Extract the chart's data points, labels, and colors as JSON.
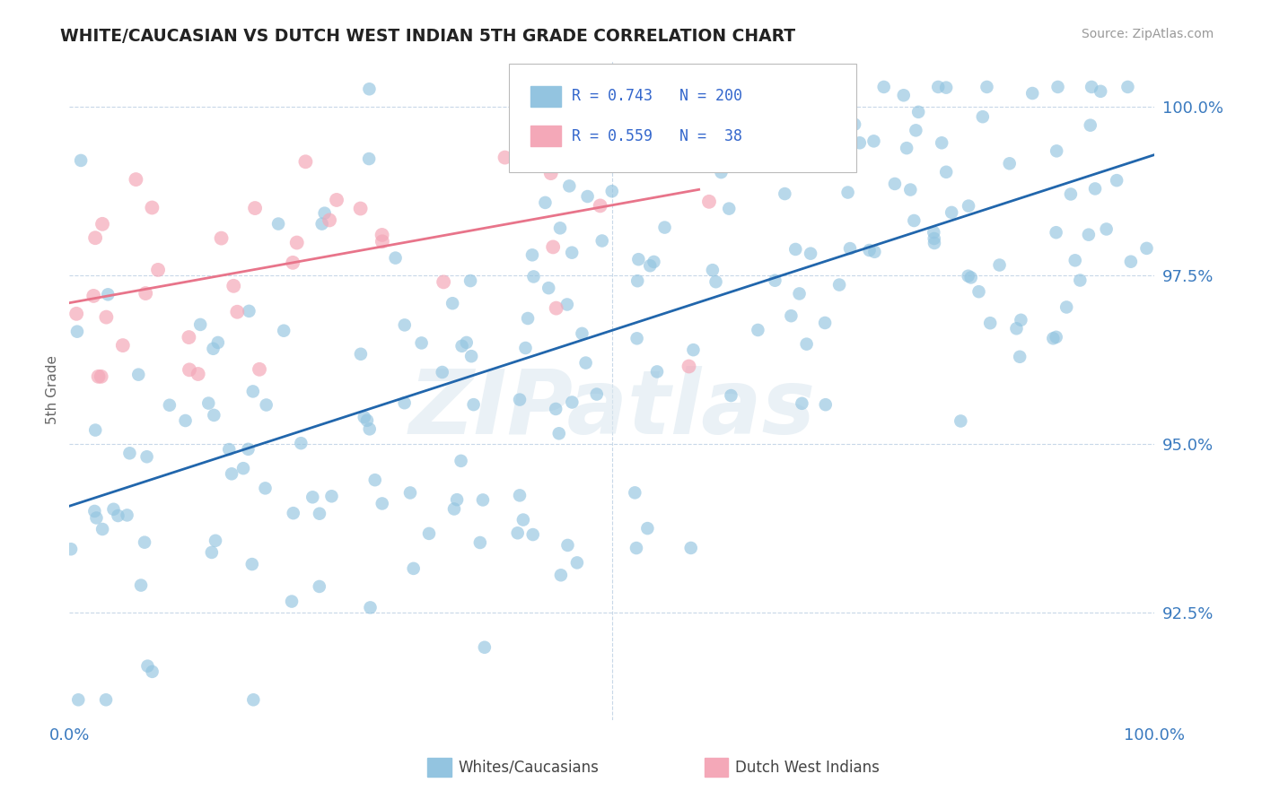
{
  "title": "WHITE/CAUCASIAN VS DUTCH WEST INDIAN 5TH GRADE CORRELATION CHART",
  "source_text": "Source: ZipAtlas.com",
  "ylabel": "5th Grade",
  "x_min": 0.0,
  "x_max": 1.0,
  "y_min": 0.909,
  "y_max": 1.007,
  "y_tick_labels": [
    "92.5%",
    "95.0%",
    "97.5%",
    "100.0%"
  ],
  "y_tick_positions": [
    0.925,
    0.95,
    0.975,
    1.0
  ],
  "blue_color": "#93c4e0",
  "pink_color": "#f4a8b8",
  "blue_line_color": "#2166ac",
  "pink_line_color": "#e8748a",
  "legend_blue_label": "Whites/Caucasians",
  "legend_pink_label": "Dutch West Indians",
  "R_blue": 0.743,
  "N_blue": 200,
  "R_pink": 0.559,
  "N_pink": 38,
  "stat_color": "#3366cc",
  "watermark": "ZIPatlas",
  "background_color": "#ffffff",
  "grid_color": "#c8d8e8",
  "axis_label_color": "#3a7abf",
  "title_color": "#222222"
}
